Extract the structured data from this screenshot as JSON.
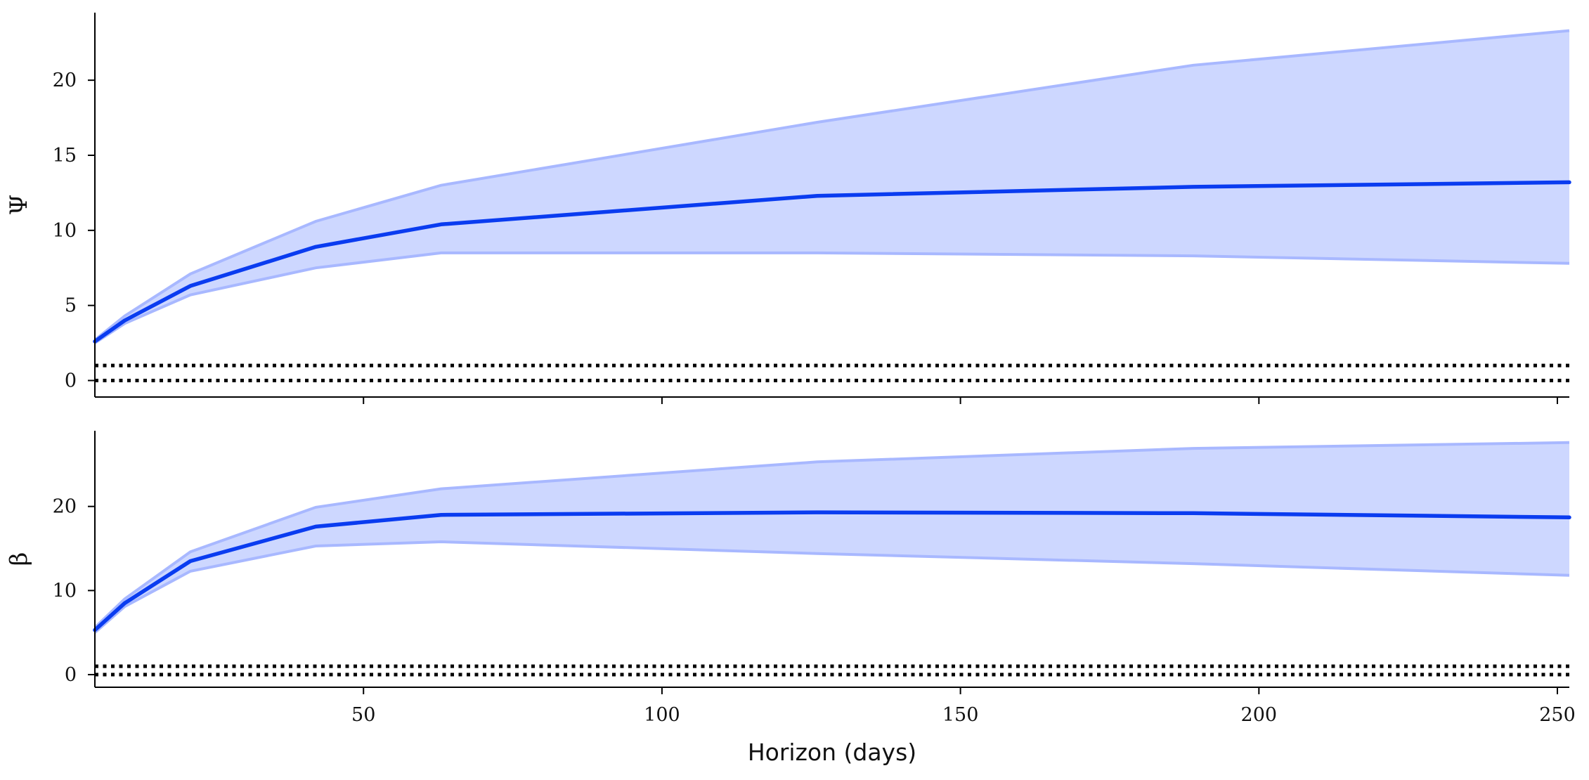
{
  "chart_data": [
    {
      "type": "line",
      "ylabel": "Ψ",
      "xlabel": "",
      "xlim": [
        5,
        252
      ],
      "ylim": [
        -1.1,
        24.5
      ],
      "yticks": [
        0,
        5,
        10,
        15,
        20
      ],
      "xticks": [
        50,
        100,
        150,
        200,
        250
      ],
      "grid": false,
      "series": [
        {
          "role": "median",
          "color": "#0a3cf0",
          "x": [
            5,
            10,
            21,
            42,
            63,
            126,
            189,
            252
          ],
          "y": [
            2.6,
            4.0,
            6.3,
            8.9,
            10.4,
            12.3,
            12.9,
            13.2
          ],
          "band_lower": [
            2.5,
            3.8,
            5.7,
            7.5,
            8.5,
            8.5,
            8.3,
            7.8
          ],
          "band_upper": [
            2.7,
            4.3,
            7.1,
            10.6,
            13.0,
            17.2,
            21.0,
            23.3
          ]
        }
      ],
      "reference_lines": [
        0,
        1
      ],
      "band_color": "#cdd7ff"
    },
    {
      "type": "line",
      "ylabel": "β",
      "xlabel": "Horizon (days)",
      "xlim": [
        5,
        252
      ],
      "ylim": [
        -1.5,
        29
      ],
      "yticks": [
        0,
        10,
        20
      ],
      "xticks": [
        50,
        100,
        150,
        200,
        250
      ],
      "grid": false,
      "series": [
        {
          "role": "median",
          "color": "#0a3cf0",
          "x": [
            5,
            10,
            21,
            42,
            63,
            126,
            189,
            252
          ],
          "y": [
            5.3,
            8.5,
            13.5,
            17.6,
            19.0,
            19.3,
            19.2,
            18.7
          ],
          "band_lower": [
            5.0,
            8.1,
            12.3,
            15.3,
            15.8,
            14.4,
            13.2,
            11.8
          ],
          "band_upper": [
            5.6,
            9.0,
            14.6,
            19.9,
            22.1,
            25.3,
            26.9,
            27.6
          ]
        }
      ],
      "reference_lines": [
        0,
        1
      ],
      "band_color": "#cdd7ff"
    }
  ]
}
